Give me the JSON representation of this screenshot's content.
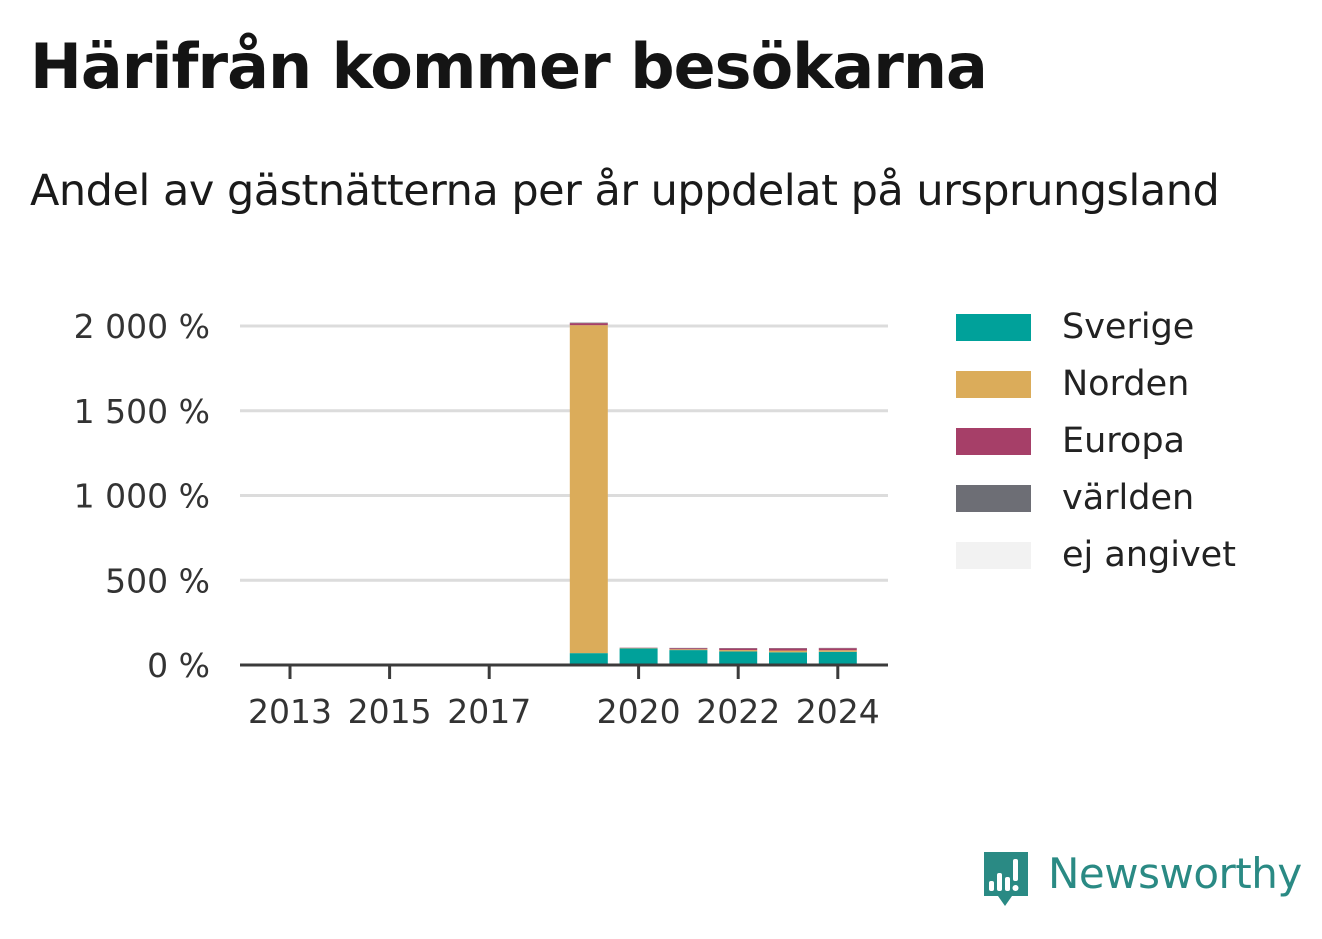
{
  "title": "Härifrån kommer besökarna",
  "subtitle": "Andel av gästnätterna per år uppdelat på ursprungsland",
  "brand": {
    "name": "Newsworthy",
    "logo_icon": "chart-speech-bubble-icon",
    "color": "#2a8a84"
  },
  "chart_data": {
    "type": "bar",
    "stacked": true,
    "categories": [
      "2013",
      "2014",
      "2015",
      "2016",
      "2017",
      "2018",
      "2019",
      "2020",
      "2021",
      "2022",
      "2023",
      "2024"
    ],
    "x_tick_labels": [
      "2013",
      "2015",
      "2017",
      "2020",
      "2022",
      "2024"
    ],
    "y_tick_labels": [
      "0 %",
      "500 %",
      "1 000 %",
      "1 500 %",
      "2 000 %"
    ],
    "y_ticks": [
      0,
      500,
      1000,
      1500,
      2000
    ],
    "ylim": [
      0,
      2000
    ],
    "grid": true,
    "legend_position": "right",
    "series": [
      {
        "name": "Sverige",
        "color": "#00a19a",
        "values": [
          0,
          0,
          0,
          0,
          0,
          0,
          70,
          98,
          88,
          80,
          75,
          78
        ]
      },
      {
        "name": "Norden",
        "color": "#dbac5a",
        "values": [
          0,
          0,
          0,
          0,
          0,
          0,
          1935,
          2,
          5,
          8,
          10,
          9
        ]
      },
      {
        "name": "Europa",
        "color": "#a63f68",
        "values": [
          0,
          0,
          0,
          0,
          0,
          0,
          12,
          2,
          6,
          10,
          13,
          12
        ]
      },
      {
        "name": "världen",
        "color": "#6d6e75",
        "values": [
          0,
          0,
          0,
          0,
          0,
          0,
          3,
          0,
          2,
          2,
          2,
          2
        ]
      },
      {
        "name": "ej angivet",
        "color": "#f2f2f2",
        "values": [
          0,
          0,
          0,
          0,
          0,
          0,
          0,
          0,
          0,
          0,
          0,
          0
        ]
      }
    ]
  }
}
